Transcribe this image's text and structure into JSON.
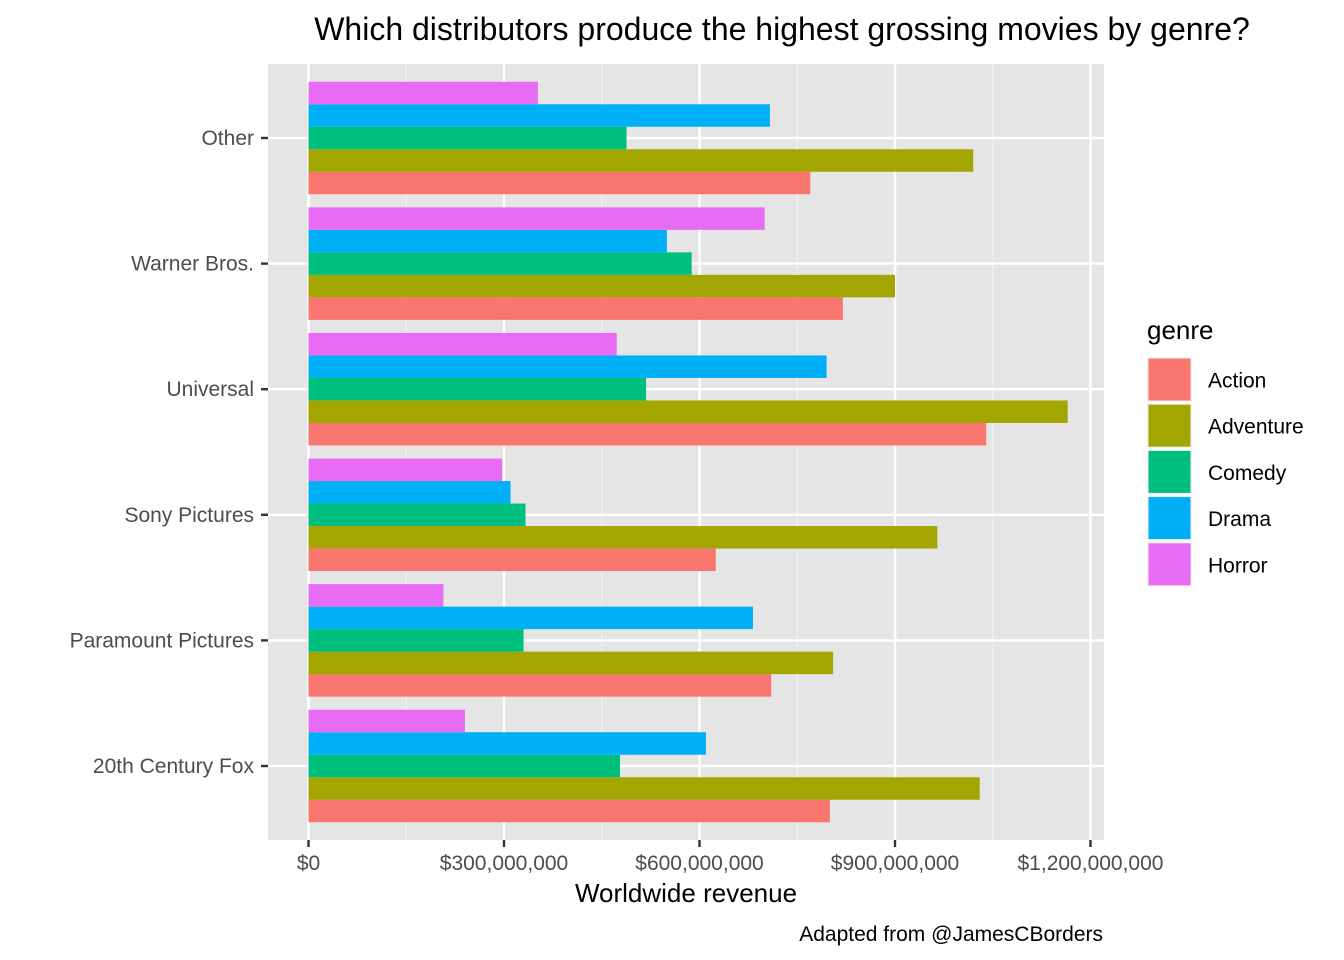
{
  "chart_data": {
    "type": "bar",
    "orientation": "horizontal",
    "title": "Which distributors produce the highest grossing movies by genre?",
    "xlabel": "Worldwide revenue",
    "ylabel": "",
    "caption": "Adapted from @JamesCBorders",
    "categories": [
      "20th Century Fox",
      "Paramount Pictures",
      "Sony Pictures",
      "Universal",
      "Warner Bros.",
      "Other"
    ],
    "xlim": [
      -100000000,
      1265000000
    ],
    "xticks": [
      0,
      300000000,
      600000000,
      900000000,
      1200000000
    ],
    "xtick_labels": [
      "$0",
      "$300,000,000",
      "$600,000,000",
      "$900,000,000",
      "$1,200,000,000"
    ],
    "grid": true,
    "legend": {
      "title": "genre",
      "position": "right"
    },
    "series": [
      {
        "name": "Action",
        "color": "#F8766D",
        "values": [
          800000000,
          710000000,
          625000000,
          1040000000,
          820000000,
          770000000
        ]
      },
      {
        "name": "Adventure",
        "color": "#A3A500",
        "values": [
          1030000000,
          805000000,
          965000000,
          1165000000,
          900000000,
          1020000000
        ]
      },
      {
        "name": "Comedy",
        "color": "#00BF7D",
        "values": [
          478000000,
          330000000,
          333000000,
          518000000,
          588000000,
          488000000
        ]
      },
      {
        "name": "Drama",
        "color": "#00B0F6",
        "values": [
          610000000,
          682000000,
          310000000,
          795000000,
          550000000,
          708000000
        ]
      },
      {
        "name": "Horror",
        "color": "#E76BF3",
        "values": [
          240000000,
          207000000,
          297000000,
          473000000,
          700000000,
          352000000
        ]
      }
    ],
    "colors": {
      "panel": "#E5E5E5",
      "grid_major": "#FFFFFF",
      "grid_minor": "#F2F2F2",
      "tick": "#333333"
    }
  }
}
